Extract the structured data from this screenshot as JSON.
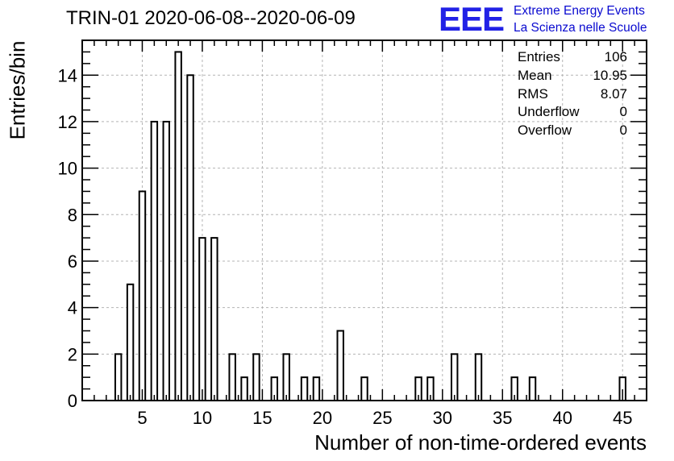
{
  "chart_data": {
    "type": "bar",
    "title": "TRIN-01 2020-06-08--2020-06-09",
    "xlabel": "Number of non-time-ordered events",
    "ylabel": "Entries/bin",
    "xlim": [
      0,
      47
    ],
    "ylim": [
      0,
      15.5
    ],
    "xticks": [
      5,
      10,
      15,
      20,
      25,
      30,
      35,
      40,
      45
    ],
    "yticks": [
      0,
      2,
      4,
      6,
      8,
      10,
      12,
      14
    ],
    "grid": true,
    "bin_width": 0.5,
    "bars": [
      {
        "x": 3,
        "value": 2
      },
      {
        "x": 4,
        "value": 5
      },
      {
        "x": 5,
        "value": 9
      },
      {
        "x": 6,
        "value": 12
      },
      {
        "x": 7,
        "value": 12
      },
      {
        "x": 8,
        "value": 15
      },
      {
        "x": 9,
        "value": 14
      },
      {
        "x": 10,
        "value": 7
      },
      {
        "x": 11,
        "value": 7
      },
      {
        "x": 12.5,
        "value": 2
      },
      {
        "x": 13.5,
        "value": 1
      },
      {
        "x": 14.5,
        "value": 2
      },
      {
        "x": 16,
        "value": 1
      },
      {
        "x": 17,
        "value": 2
      },
      {
        "x": 18.5,
        "value": 1
      },
      {
        "x": 19.5,
        "value": 1
      },
      {
        "x": 21.5,
        "value": 3
      },
      {
        "x": 23.5,
        "value": 1
      },
      {
        "x": 28,
        "value": 1
      },
      {
        "x": 29,
        "value": 1
      },
      {
        "x": 31,
        "value": 2
      },
      {
        "x": 33,
        "value": 2
      },
      {
        "x": 36,
        "value": 1
      },
      {
        "x": 37.5,
        "value": 1
      },
      {
        "x": 45,
        "value": 1
      }
    ],
    "stats": [
      {
        "label": "Entries",
        "value": "106"
      },
      {
        "label": "Mean",
        "value": "10.95"
      },
      {
        "label": "RMS",
        "value": "8.07"
      },
      {
        "label": "Underflow",
        "value": "0"
      },
      {
        "label": "Overflow",
        "value": "0"
      }
    ]
  },
  "logo": {
    "mark": "EEE",
    "line1": "Extreme Energy Events",
    "line2": "La Scienza nelle Scuole",
    "color": "#2121e6"
  }
}
